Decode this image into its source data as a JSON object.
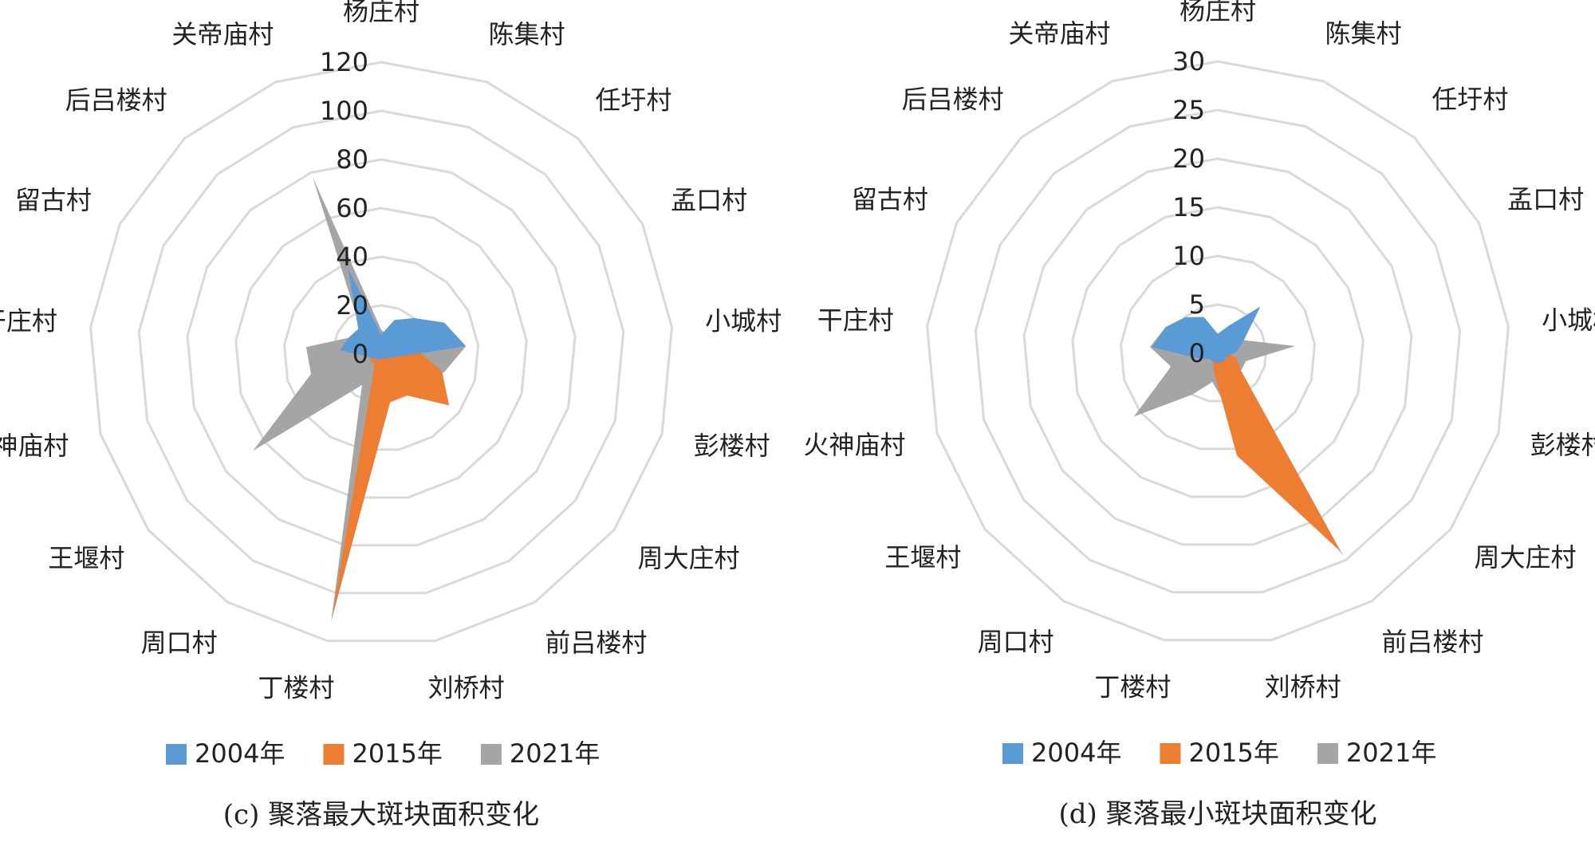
{
  "chart_data": [
    {
      "type": "radar",
      "title": "(c) 聚落最大斑块面积变化",
      "categories": [
        "杨庄村",
        "陈集村",
        "任圩村",
        "孟口村",
        "小城村",
        "彭楼村",
        "周大庄村",
        "前吕楼村",
        "刘桥村",
        "丁楼村",
        "周口村",
        "王堰村",
        "火神庙村",
        "干庄村",
        "留古村",
        "后吕楼村",
        "关帝庙村"
      ],
      "series": [
        {
          "name": "2004年",
          "color": "#5b9bd5",
          "values": [
            8,
            15,
            20,
            29,
            35,
            5,
            3,
            2,
            2,
            2,
            3,
            3,
            5,
            17,
            15,
            14,
            38
          ]
        },
        {
          "name": "2015年",
          "color": "#ed7d31",
          "values": [
            5,
            5,
            8,
            12,
            15,
            26,
            35,
            20,
            20,
            110,
            5,
            5,
            5,
            5,
            5,
            5,
            10
          ]
        },
        {
          "name": "2021年",
          "color": "#a5a5a5",
          "values": [
            10,
            8,
            10,
            15,
            35,
            27,
            20,
            15,
            20,
            112,
            15,
            66,
            30,
            31,
            15,
            12,
            78
          ]
        }
      ],
      "rlim": [
        0,
        120
      ],
      "rticks": [
        0,
        20,
        40,
        60,
        80,
        100,
        120
      ],
      "grid": true
    },
    {
      "type": "radar",
      "title": "(d) 聚落最小斑块面积变化",
      "categories": [
        "杨庄村",
        "陈集村",
        "任圩村",
        "孟口村",
        "小城村",
        "彭楼村",
        "周大庄村",
        "前吕楼村",
        "刘桥村",
        "丁楼村",
        "周口村",
        "王堰村",
        "火神庙村",
        "干庄村",
        "留古村",
        "后吕楼村",
        "关帝庙村"
      ],
      "series": [
        {
          "name": "2004年",
          "color": "#5b9bd5",
          "values": [
            2,
            3,
            6.5,
            3,
            2,
            1,
            1,
            1,
            1,
            1,
            1,
            1,
            2,
            6.8,
            6,
            5,
            4
          ]
        },
        {
          "name": "2015年",
          "color": "#ed7d31",
          "values": [
            1,
            1,
            1,
            1,
            1,
            2,
            3,
            24,
            10.7,
            2,
            1,
            1,
            1,
            1,
            1,
            1,
            1
          ]
        },
        {
          "name": "2021年",
          "color": "#a5a5a5",
          "values": [
            2,
            2,
            2,
            3,
            8,
            3,
            3,
            24.5,
            6,
            3,
            5,
            10.8,
            5,
            7,
            6,
            5,
            3
          ]
        }
      ],
      "rlim": [
        0,
        30
      ],
      "rticks": [
        0,
        5,
        10,
        15,
        20,
        25,
        30
      ],
      "grid": true
    }
  ]
}
